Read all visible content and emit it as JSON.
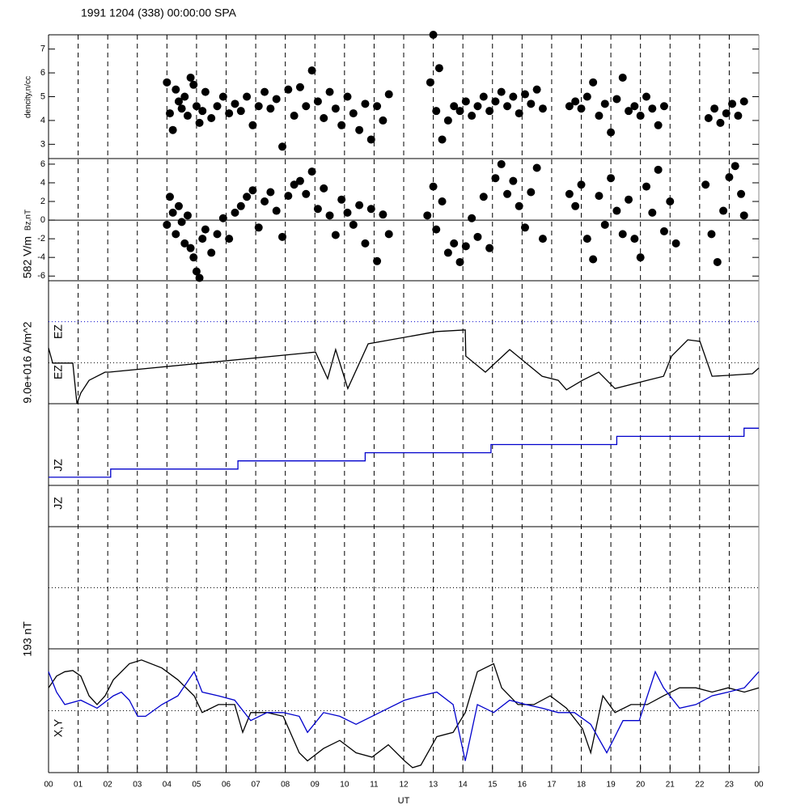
{
  "header": {
    "title": "1991 1204 (338) 00:00:00 SPA"
  },
  "x_axis": {
    "label": "UT",
    "xlim": [
      0,
      24
    ],
    "xticks": [
      {
        "value": 0,
        "label": "00"
      },
      {
        "value": 1,
        "label": "01"
      },
      {
        "value": 2,
        "label": "02"
      },
      {
        "value": 3,
        "label": "03"
      },
      {
        "value": 4,
        "label": "04"
      },
      {
        "value": 5,
        "label": "05"
      },
      {
        "value": 6,
        "label": "06"
      },
      {
        "value": 7,
        "label": "07"
      },
      {
        "value": 8,
        "label": "08"
      },
      {
        "value": 9,
        "label": "09"
      },
      10,
      11,
      12,
      13,
      14,
      15,
      16,
      17,
      18,
      19,
      20,
      21,
      22,
      23,
      {
        "value": 24,
        "label": "00"
      }
    ]
  },
  "chart_data": [
    {
      "type": "scatter",
      "y_label": "dencity,n/cc",
      "ylim": [
        2.4,
        7.6
      ],
      "yticks": [
        3,
        4,
        5,
        6,
        7
      ],
      "color": "#000000",
      "x": [
        4.0,
        4.1,
        4.2,
        4.3,
        4.4,
        4.5,
        4.6,
        4.7,
        4.8,
        4.9,
        5.0,
        5.1,
        5.2,
        5.3,
        5.5,
        5.7,
        5.9,
        6.1,
        6.3,
        6.5,
        6.7,
        6.9,
        7.1,
        7.3,
        7.5,
        7.7,
        7.9,
        8.1,
        8.3,
        8.5,
        8.7,
        8.9,
        9.1,
        9.3,
        9.5,
        9.7,
        9.9,
        10.1,
        10.3,
        10.5,
        10.7,
        10.9,
        11.1,
        11.3,
        11.5,
        12.9,
        13.0,
        13.1,
        13.2,
        13.3,
        13.5,
        13.7,
        13.9,
        14.1,
        14.3,
        14.5,
        14.7,
        14.9,
        15.1,
        15.3,
        15.5,
        15.7,
        15.9,
        16.1,
        16.3,
        16.5,
        16.7,
        17.6,
        17.8,
        18.0,
        18.2,
        18.4,
        18.6,
        18.8,
        19.0,
        19.2,
        19.4,
        19.6,
        19.8,
        20.0,
        20.2,
        20.4,
        20.6,
        20.8,
        22.3,
        22.5,
        22.7,
        22.9,
        23.1,
        23.3,
        23.5
      ],
      "values": [
        5.6,
        4.3,
        3.6,
        5.3,
        4.8,
        4.5,
        5.0,
        4.2,
        5.8,
        5.5,
        4.6,
        3.9,
        4.4,
        5.2,
        4.1,
        4.6,
        5.0,
        4.3,
        4.7,
        4.4,
        5.0,
        3.8,
        4.6,
        5.2,
        4.5,
        4.9,
        2.9,
        5.3,
        4.2,
        5.4,
        4.6,
        6.1,
        4.8,
        4.1,
        5.2,
        4.5,
        3.8,
        5.0,
        4.3,
        3.6,
        4.7,
        3.2,
        4.6,
        4.0,
        5.1,
        5.6,
        7.6,
        4.4,
        6.2,
        3.2,
        4.0,
        4.6,
        4.4,
        4.8,
        4.2,
        4.6,
        5.0,
        4.4,
        4.8,
        5.2,
        4.6,
        5.0,
        4.3,
        5.1,
        4.7,
        5.3,
        4.5,
        4.6,
        4.8,
        4.5,
        5.0,
        5.6,
        4.2,
        4.7,
        3.5,
        4.9,
        5.8,
        4.4,
        4.6,
        4.2,
        5.0,
        4.5,
        3.8,
        4.6,
        4.1,
        4.5,
        3.9,
        4.3,
        4.7,
        4.2,
        4.8
      ]
    },
    {
      "type": "scatter",
      "y_label": "Bz,nT",
      "ylim": [
        -6.5,
        6.6
      ],
      "yticks": [
        -6,
        -4,
        -2,
        0,
        2,
        4,
        6
      ],
      "zero_line": true,
      "color": "#000000",
      "x": [
        4.0,
        4.1,
        4.2,
        4.3,
        4.4,
        4.5,
        4.6,
        4.7,
        4.8,
        4.9,
        5.0,
        5.1,
        5.2,
        5.3,
        5.5,
        5.7,
        5.9,
        6.1,
        6.3,
        6.5,
        6.7,
        6.9,
        7.1,
        7.3,
        7.5,
        7.7,
        7.9,
        8.1,
        8.3,
        8.5,
        8.7,
        8.9,
        9.1,
        9.3,
        9.5,
        9.7,
        9.9,
        10.1,
        10.3,
        10.5,
        10.7,
        10.9,
        11.1,
        11.3,
        11.5,
        12.8,
        13.0,
        13.1,
        13.3,
        13.5,
        13.7,
        13.9,
        14.1,
        14.3,
        14.5,
        14.7,
        14.9,
        15.1,
        15.3,
        15.5,
        15.7,
        15.9,
        16.1,
        16.3,
        16.5,
        16.7,
        17.6,
        17.8,
        18.0,
        18.2,
        18.4,
        18.6,
        18.8,
        19.0,
        19.2,
        19.4,
        19.6,
        19.8,
        20.0,
        20.2,
        20.4,
        20.6,
        20.8,
        21.0,
        21.2,
        22.2,
        22.4,
        22.6,
        22.8,
        23.0,
        23.2,
        23.4,
        23.5
      ],
      "values": [
        -0.5,
        2.5,
        0.8,
        -1.5,
        1.5,
        -0.2,
        -2.5,
        0.5,
        -3.0,
        -4.0,
        -5.5,
        -6.2,
        -2.0,
        -1.0,
        -3.5,
        -1.5,
        0.2,
        -2.0,
        0.8,
        1.5,
        2.5,
        3.2,
        -0.8,
        2.0,
        3.0,
        1.0,
        -1.8,
        2.6,
        3.8,
        4.2,
        2.8,
        5.2,
        1.2,
        3.4,
        0.5,
        -1.6,
        2.2,
        0.8,
        -0.5,
        1.6,
        -2.5,
        1.2,
        -4.4,
        0.6,
        -1.5,
        0.5,
        3.6,
        -1.0,
        2.0,
        -3.5,
        -2.5,
        -4.5,
        -2.8,
        0.2,
        -1.8,
        2.5,
        -3.0,
        4.5,
        6.0,
        2.8,
        4.2,
        1.5,
        -0.8,
        3.0,
        5.6,
        -2.0,
        2.8,
        1.5,
        3.8,
        -2.0,
        -4.2,
        2.6,
        -0.5,
        4.5,
        1.0,
        -1.5,
        2.2,
        -2.0,
        -4.0,
        3.6,
        0.8,
        5.4,
        -1.2,
        2.0,
        -2.5,
        3.8,
        -1.5,
        -4.5,
        1.0,
        4.6,
        5.8,
        2.8,
        0.5
      ]
    },
    {
      "type": "line",
      "scale_label": "582 V/m",
      "labels": [
        "EZ",
        "EZ"
      ],
      "ylim": [
        0,
        3
      ],
      "ref_lines": [
        {
          "value": 2,
          "color": "#0000cc"
        },
        {
          "value": 1,
          "color": "#000000"
        }
      ],
      "series": [
        {
          "color": "#000000",
          "x": [
            0,
            0.14,
            0.82,
            0.96,
            1.09,
            1.37,
            1.91,
            2.05,
            9.02,
            9.43,
            9.7,
            10.11,
            10.8,
            13.12,
            14.08,
            14.1,
            14.76,
            15.58,
            16.68,
            17.22,
            17.5,
            18.04,
            18.59,
            19.14,
            20.23,
            20.78,
            21.05,
            21.6,
            22.01,
            22.42,
            22.96,
            23.78,
            24
          ],
          "values": [
            1.36,
            0.99,
            0.99,
            0,
            0.26,
            0.57,
            0.77,
            0.77,
            1.26,
            0.61,
            1.32,
            0.37,
            1.46,
            1.76,
            1.8,
            1.16,
            0.77,
            1.32,
            0.67,
            0.57,
            0.34,
            0.57,
            0.77,
            0.37,
            0.57,
            0.67,
            1.16,
            1.56,
            1.52,
            0.67,
            0.69,
            0.73,
            0.87
          ]
        }
      ]
    },
    {
      "type": "line",
      "scale_label": "9.0e+016 A/m^2",
      "labels": [
        "JZ"
      ],
      "ylim": [
        0,
        10
      ],
      "series": [
        {
          "color": "#0000cc",
          "x": [
            0,
            2.1,
            2.1,
            6.4,
            6.4,
            10.7,
            10.7,
            14.95,
            14.95,
            19.2,
            19.2,
            23.5,
            23.5,
            24
          ],
          "values": [
            1,
            1,
            2,
            2,
            3,
            3,
            4,
            4,
            5,
            5,
            6,
            6,
            7,
            7
          ]
        }
      ]
    },
    {
      "type": "empty",
      "labels": [
        "JZ"
      ]
    },
    {
      "type": "empty",
      "ylim": [
        -1,
        1
      ],
      "ref_lines": [
        {
          "value": 0,
          "color": "#000000"
        }
      ]
    },
    {
      "type": "line",
      "scale_label": "193 nT",
      "labels": [
        "X,Y"
      ],
      "ylim": [
        -1,
        1
      ],
      "ref_lines": [
        {
          "value": 0,
          "color": "#000000"
        }
      ],
      "series": [
        {
          "color": "#000000",
          "x": [
            0,
            0.27,
            0.55,
            0.82,
            1.09,
            1.37,
            1.64,
            1.91,
            2.19,
            2.73,
            3.14,
            3.83,
            4.37,
            4.92,
            5.19,
            5.74,
            6.29,
            6.56,
            6.83,
            7.38,
            7.93,
            8.47,
            8.75,
            9.29,
            9.84,
            10.39,
            10.93,
            11.48,
            12.03,
            12.3,
            12.58,
            13.12,
            13.67,
            14.08,
            14.49,
            15.04,
            15.31,
            15.86,
            16.4,
            16.95,
            17.5,
            18.04,
            18.32,
            18.73,
            19.14,
            19.68,
            20.23,
            20.78,
            21.32,
            21.87,
            22.42,
            22.96,
            23.51,
            24
          ],
          "values": [
            0.37,
            0.56,
            0.63,
            0.65,
            0.56,
            0.24,
            0.1,
            0.24,
            0.5,
            0.76,
            0.82,
            0.69,
            0.5,
            0.24,
            -0.03,
            0.1,
            0.1,
            -0.35,
            -0.03,
            -0.03,
            -0.09,
            -0.68,
            -0.81,
            -0.61,
            -0.48,
            -0.68,
            -0.75,
            -0.55,
            -0.81,
            -0.92,
            -0.88,
            -0.42,
            -0.35,
            -0.03,
            0.63,
            0.76,
            0.37,
            0.1,
            0.1,
            0.24,
            0.04,
            -0.29,
            -0.68,
            0.24,
            -0.03,
            0.1,
            0.1,
            0.24,
            0.37,
            0.37,
            0.3,
            0.37,
            0.3,
            0.37
          ]
        },
        {
          "color": "#0000cc",
          "x": [
            0,
            0.27,
            0.55,
            1.09,
            1.64,
            2.19,
            2.46,
            2.73,
            3.01,
            3.28,
            3.83,
            4.37,
            4.92,
            5.19,
            5.74,
            6.29,
            6.83,
            7.38,
            7.93,
            8.47,
            8.75,
            9.29,
            9.84,
            10.39,
            10.93,
            11.48,
            12.03,
            12.58,
            13.12,
            13.67,
            14.08,
            14.49,
            15.04,
            15.58,
            16.13,
            16.68,
            17.22,
            17.77,
            18.32,
            18.86,
            19.41,
            19.96,
            20.5,
            20.78,
            21.32,
            21.87,
            22.42,
            22.96,
            23.51,
            24
          ],
          "values": [
            0.63,
            0.3,
            0.1,
            0.17,
            0.04,
            0.24,
            0.3,
            0.17,
            -0.09,
            -0.09,
            0.1,
            0.24,
            0.63,
            0.3,
            0.24,
            0.17,
            -0.16,
            -0.03,
            -0.03,
            -0.09,
            -0.35,
            -0.03,
            -0.09,
            -0.22,
            -0.09,
            0.04,
            0.17,
            0.24,
            0.3,
            0.1,
            -0.81,
            0.1,
            -0.03,
            0.17,
            0.1,
            0.04,
            -0.03,
            -0.03,
            -0.22,
            -0.68,
            -0.16,
            -0.16,
            0.63,
            0.37,
            0.04,
            0.1,
            0.24,
            0.3,
            0.37,
            0.63
          ]
        }
      ]
    }
  ]
}
